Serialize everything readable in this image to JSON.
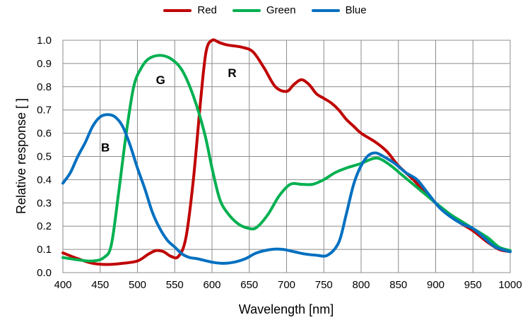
{
  "chart_data": {
    "type": "line",
    "xlabel": "Wavelength [nm]",
    "ylabel": "Relative response [ ]",
    "xlim": [
      400,
      1000
    ],
    "ylim": [
      0,
      1.0
    ],
    "x_ticks": [
      "400",
      "450",
      "500",
      "550",
      "600",
      "650",
      "700",
      "750",
      "800",
      "850",
      "900",
      "950",
      "1000"
    ],
    "y_ticks": [
      "0.0",
      "0.1",
      "0.2",
      "0.3",
      "0.4",
      "0.5",
      "0.6",
      "0.7",
      "0.8",
      "0.9",
      "1.0"
    ],
    "grid": true,
    "legend_position": "top-center",
    "series": [
      {
        "name": "Red",
        "color": "#c00000",
        "points": [
          [
            400,
            0.085
          ],
          [
            420,
            0.06
          ],
          [
            440,
            0.04
          ],
          [
            460,
            0.035
          ],
          [
            480,
            0.04
          ],
          [
            500,
            0.05
          ],
          [
            515,
            0.08
          ],
          [
            525,
            0.095
          ],
          [
            535,
            0.09
          ],
          [
            545,
            0.07
          ],
          [
            555,
            0.07
          ],
          [
            565,
            0.15
          ],
          [
            575,
            0.4
          ],
          [
            585,
            0.75
          ],
          [
            592,
            0.95
          ],
          [
            600,
            1.0
          ],
          [
            610,
            0.99
          ],
          [
            620,
            0.98
          ],
          [
            640,
            0.97
          ],
          [
            655,
            0.95
          ],
          [
            670,
            0.88
          ],
          [
            685,
            0.8
          ],
          [
            700,
            0.78
          ],
          [
            710,
            0.81
          ],
          [
            720,
            0.83
          ],
          [
            730,
            0.81
          ],
          [
            740,
            0.77
          ],
          [
            750,
            0.75
          ],
          [
            760,
            0.73
          ],
          [
            770,
            0.7
          ],
          [
            780,
            0.66
          ],
          [
            790,
            0.63
          ],
          [
            800,
            0.6
          ],
          [
            820,
            0.56
          ],
          [
            835,
            0.52
          ],
          [
            850,
            0.46
          ],
          [
            870,
            0.4
          ],
          [
            890,
            0.33
          ],
          [
            910,
            0.27
          ],
          [
            930,
            0.22
          ],
          [
            950,
            0.18
          ],
          [
            970,
            0.13
          ],
          [
            985,
            0.1
          ],
          [
            1000,
            0.09
          ]
        ]
      },
      {
        "name": "Green",
        "color": "#00b050",
        "points": [
          [
            400,
            0.065
          ],
          [
            420,
            0.055
          ],
          [
            440,
            0.05
          ],
          [
            455,
            0.065
          ],
          [
            465,
            0.12
          ],
          [
            475,
            0.35
          ],
          [
            485,
            0.6
          ],
          [
            495,
            0.8
          ],
          [
            505,
            0.88
          ],
          [
            515,
            0.92
          ],
          [
            530,
            0.935
          ],
          [
            545,
            0.92
          ],
          [
            560,
            0.87
          ],
          [
            575,
            0.76
          ],
          [
            590,
            0.6
          ],
          [
            600,
            0.45
          ],
          [
            610,
            0.32
          ],
          [
            620,
            0.26
          ],
          [
            635,
            0.21
          ],
          [
            650,
            0.19
          ],
          [
            660,
            0.195
          ],
          [
            675,
            0.25
          ],
          [
            690,
            0.33
          ],
          [
            705,
            0.38
          ],
          [
            720,
            0.38
          ],
          [
            735,
            0.38
          ],
          [
            750,
            0.4
          ],
          [
            765,
            0.43
          ],
          [
            780,
            0.45
          ],
          [
            800,
            0.47
          ],
          [
            815,
            0.49
          ],
          [
            825,
            0.49
          ],
          [
            840,
            0.46
          ],
          [
            855,
            0.42
          ],
          [
            870,
            0.38
          ],
          [
            885,
            0.34
          ],
          [
            900,
            0.3
          ],
          [
            920,
            0.25
          ],
          [
            935,
            0.22
          ],
          [
            950,
            0.19
          ],
          [
            970,
            0.15
          ],
          [
            985,
            0.11
          ],
          [
            1000,
            0.095
          ]
        ]
      },
      {
        "name": "Blue",
        "color": "#0070c0",
        "points": [
          [
            400,
            0.385
          ],
          [
            410,
            0.43
          ],
          [
            420,
            0.5
          ],
          [
            430,
            0.56
          ],
          [
            440,
            0.63
          ],
          [
            450,
            0.67
          ],
          [
            460,
            0.68
          ],
          [
            470,
            0.67
          ],
          [
            480,
            0.63
          ],
          [
            490,
            0.55
          ],
          [
            500,
            0.45
          ],
          [
            510,
            0.36
          ],
          [
            520,
            0.26
          ],
          [
            530,
            0.19
          ],
          [
            540,
            0.14
          ],
          [
            550,
            0.11
          ],
          [
            560,
            0.08
          ],
          [
            570,
            0.065
          ],
          [
            580,
            0.06
          ],
          [
            600,
            0.045
          ],
          [
            615,
            0.04
          ],
          [
            630,
            0.045
          ],
          [
            645,
            0.06
          ],
          [
            660,
            0.085
          ],
          [
            680,
            0.1
          ],
          [
            695,
            0.1
          ],
          [
            710,
            0.09
          ],
          [
            725,
            0.08
          ],
          [
            740,
            0.075
          ],
          [
            755,
            0.075
          ],
          [
            770,
            0.13
          ],
          [
            780,
            0.25
          ],
          [
            790,
            0.38
          ],
          [
            800,
            0.46
          ],
          [
            810,
            0.505
          ],
          [
            820,
            0.515
          ],
          [
            830,
            0.5
          ],
          [
            845,
            0.47
          ],
          [
            860,
            0.43
          ],
          [
            875,
            0.4
          ],
          [
            890,
            0.34
          ],
          [
            905,
            0.28
          ],
          [
            920,
            0.24
          ],
          [
            935,
            0.21
          ],
          [
            950,
            0.19
          ],
          [
            965,
            0.15
          ],
          [
            980,
            0.11
          ],
          [
            1000,
            0.09
          ]
        ]
      }
    ],
    "annotations": [
      {
        "text": "R",
        "x": 627,
        "y": 0.86
      },
      {
        "text": "G",
        "x": 531,
        "y": 0.83
      },
      {
        "text": "B",
        "x": 457,
        "y": 0.54
      }
    ]
  }
}
